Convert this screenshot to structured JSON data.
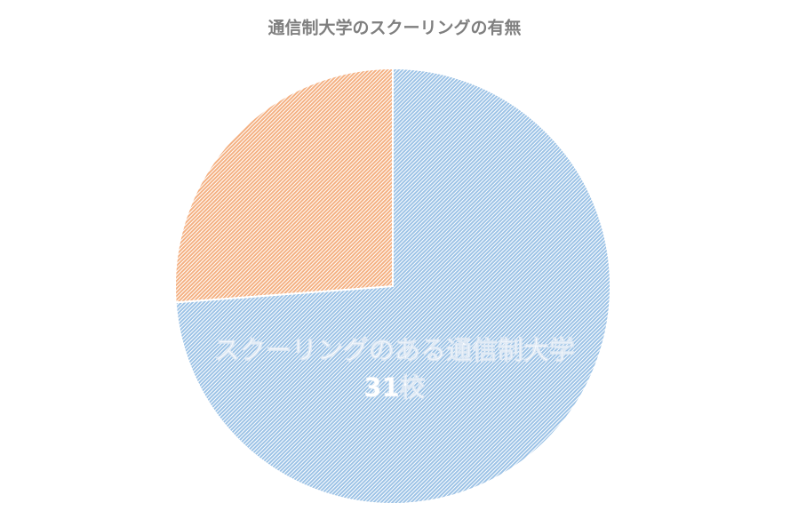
{
  "chart_data": {
    "type": "pie",
    "title": "通信制大学のスクーリングの有無",
    "categories": [
      "スクーリングのある通信制大学",
      null
    ],
    "values": [
      31,
      11
    ],
    "value_labels": [
      "31校",
      null
    ],
    "colors": [
      "#9dc3e6",
      "#f4b183"
    ],
    "hatched": true
  }
}
